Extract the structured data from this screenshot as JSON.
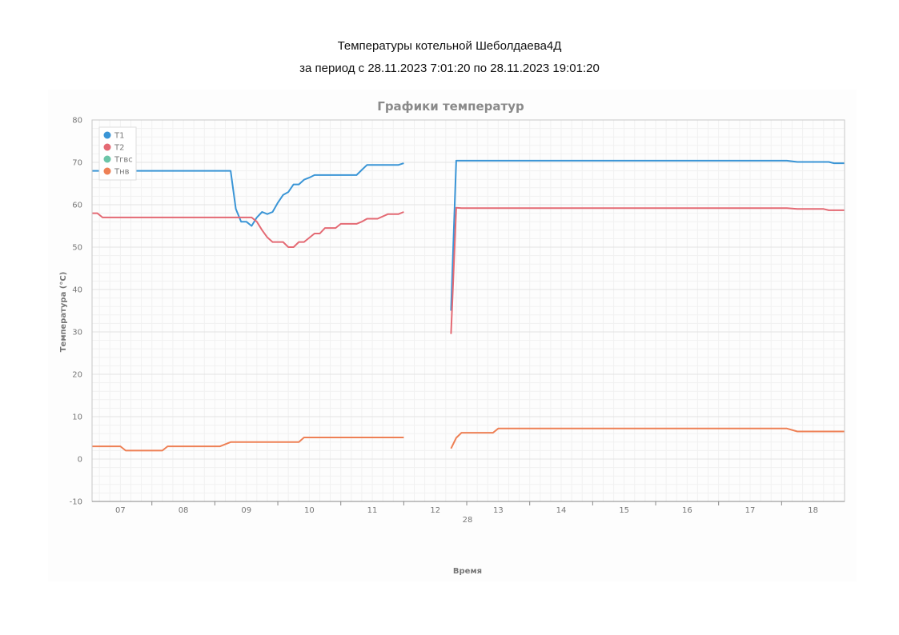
{
  "report": {
    "title_line1": "Температуры котельной Шеболдаева4Д",
    "title_line2": "за период с 28.11.2023 7:01:20 по 28.11.2023 19:01:20"
  },
  "chart_data": {
    "type": "line",
    "title": "Графики температур",
    "xlabel": "Время",
    "ylabel": "Температура (°С)",
    "ylim": [
      -10,
      80
    ],
    "yticks": [
      -10,
      0,
      10,
      20,
      30,
      40,
      50,
      60,
      70,
      80
    ],
    "xlim": [
      "06:33",
      "18:30"
    ],
    "xticks": [
      {
        "label": "07",
        "x": "07:00"
      },
      {
        "label": "08",
        "x": "08:00"
      },
      {
        "label": "09",
        "x": "09:00"
      },
      {
        "label": "10",
        "x": "10:00"
      },
      {
        "label": "11",
        "x": "11:00"
      },
      {
        "label": "12",
        "x": "12:00"
      },
      {
        "label": "13",
        "x": "13:00"
      },
      {
        "label": "14",
        "x": "14:00"
      },
      {
        "label": "15",
        "x": "15:00"
      },
      {
        "label": "16",
        "x": "16:00"
      },
      {
        "label": "17",
        "x": "17:00"
      },
      {
        "label": "18",
        "x": "18:00"
      }
    ],
    "date_label": "28",
    "grid": true,
    "legend_position": "top-left",
    "series": [
      {
        "name": "T1",
        "color": "#3a95d6",
        "segments": [
          [
            [
              "06:33",
              68
            ],
            [
              "08:45",
              68
            ],
            [
              "08:50",
              59
            ],
            [
              "08:55",
              56
            ],
            [
              "09:00",
              56
            ],
            [
              "09:05",
              55
            ],
            [
              "09:10",
              57
            ],
            [
              "09:15",
              58.3
            ],
            [
              "09:20",
              57.8
            ],
            [
              "09:25",
              58.3
            ],
            [
              "09:30",
              60.5
            ],
            [
              "09:35",
              62.3
            ],
            [
              "09:40",
              63
            ],
            [
              "09:45",
              64.8
            ],
            [
              "09:50",
              64.8
            ],
            [
              "09:55",
              65.9
            ],
            [
              "10:00",
              66.4
            ],
            [
              "10:05",
              67
            ],
            [
              "10:15",
              67
            ],
            [
              "10:45",
              67
            ],
            [
              "10:50",
              68.2
            ],
            [
              "10:55",
              69.4
            ],
            [
              "11:25",
              69.4
            ],
            [
              "11:30",
              69.8
            ]
          ],
          [
            [
              "12:15",
              35
            ],
            [
              "12:20",
              70.4
            ],
            [
              "17:35",
              70.4
            ],
            [
              "17:45",
              70.1
            ],
            [
              "18:15",
              70.1
            ],
            [
              "18:20",
              69.8
            ],
            [
              "18:30",
              69.8
            ]
          ]
        ]
      },
      {
        "name": "T2",
        "color": "#e46a74",
        "segments": [
          [
            [
              "06:33",
              58
            ],
            [
              "06:38",
              58
            ],
            [
              "06:43",
              57
            ],
            [
              "09:05",
              57
            ],
            [
              "09:10",
              56
            ],
            [
              "09:15",
              54
            ],
            [
              "09:20",
              52.3
            ],
            [
              "09:25",
              51.2
            ],
            [
              "09:35",
              51.2
            ],
            [
              "09:40",
              50
            ],
            [
              "09:45",
              50
            ],
            [
              "09:50",
              51.2
            ],
            [
              "09:55",
              51.2
            ],
            [
              "10:05",
              53.2
            ],
            [
              "10:10",
              53.2
            ],
            [
              "10:15",
              54.5
            ],
            [
              "10:25",
              54.5
            ],
            [
              "10:30",
              55.5
            ],
            [
              "10:45",
              55.5
            ],
            [
              "10:50",
              56
            ],
            [
              "10:55",
              56.7
            ],
            [
              "11:05",
              56.7
            ],
            [
              "11:15",
              57.8
            ],
            [
              "11:25",
              57.8
            ],
            [
              "11:30",
              58.3
            ]
          ],
          [
            [
              "12:15",
              29.5
            ],
            [
              "12:20",
              59.3
            ],
            [
              "12:25",
              59.2
            ],
            [
              "17:35",
              59.2
            ],
            [
              "17:45",
              59
            ],
            [
              "18:10",
              59
            ],
            [
              "18:15",
              58.7
            ],
            [
              "18:30",
              58.7
            ]
          ]
        ]
      },
      {
        "name": "Tгвс",
        "color": "#6cc5a8",
        "segments": []
      },
      {
        "name": "Tнв",
        "color": "#ee8055",
        "segments": [
          [
            [
              "06:33",
              3
            ],
            [
              "07:00",
              3
            ],
            [
              "07:05",
              2
            ],
            [
              "07:40",
              2
            ],
            [
              "07:45",
              3
            ],
            [
              "08:35",
              3
            ],
            [
              "08:45",
              4
            ],
            [
              "09:50",
              4
            ],
            [
              "09:55",
              5.1
            ],
            [
              "11:30",
              5.1
            ]
          ],
          [
            [
              "12:15",
              2.5
            ],
            [
              "12:20",
              5
            ],
            [
              "12:25",
              6.2
            ],
            [
              "12:55",
              6.2
            ],
            [
              "13:00",
              7.2
            ],
            [
              "17:35",
              7.2
            ],
            [
              "17:45",
              6.5
            ],
            [
              "18:20",
              6.5
            ],
            [
              "18:30",
              6.5
            ]
          ]
        ]
      }
    ]
  }
}
